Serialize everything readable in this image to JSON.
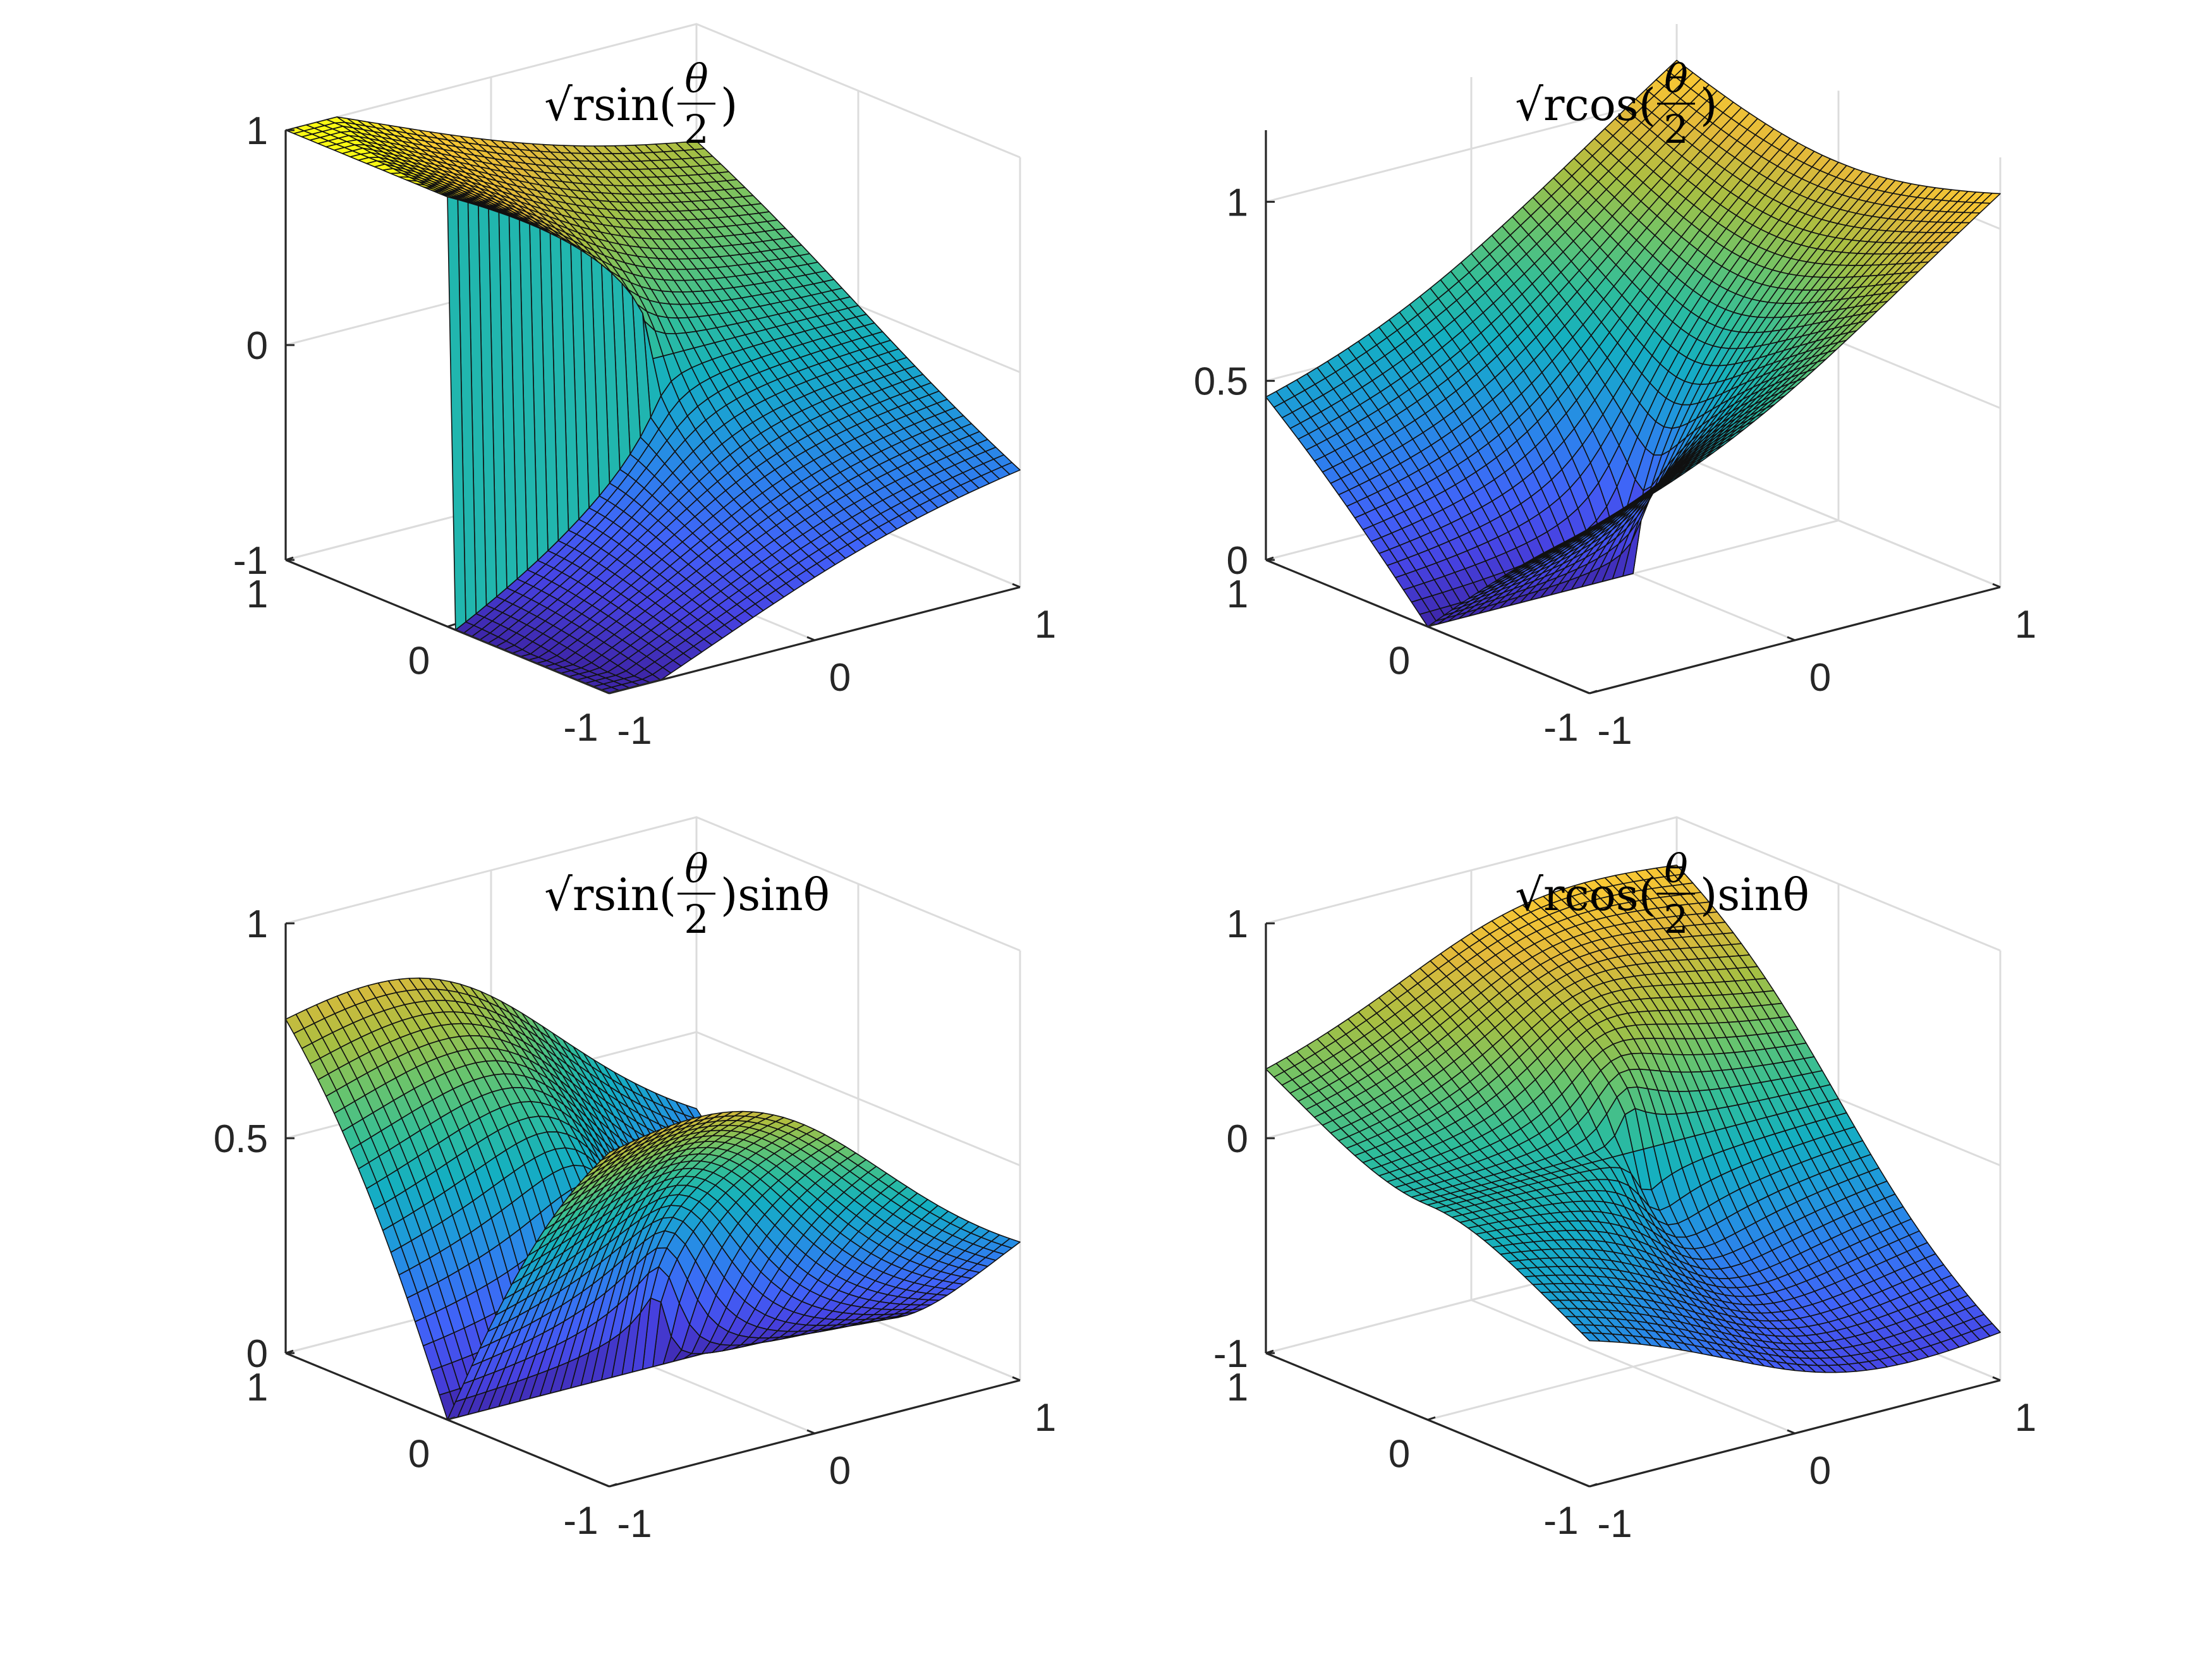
{
  "figure": {
    "background": "#ffffff"
  },
  "colormap": [
    "#3e26a8",
    "#4743e3",
    "#4162f8",
    "#2e7fee",
    "#1e9bd9",
    "#14afc1",
    "#2fbd9b",
    "#69c46d",
    "#a8bf42",
    "#e1b93b",
    "#fcca32",
    "#f9f914"
  ],
  "chart_data": [
    {
      "type": "surface",
      "title": "√r sin(θ/2)",
      "title_parts": {
        "root": "√",
        "var": "r",
        "fn": "sin(",
        "num": "θ",
        "den": "2",
        "close": ")",
        "suffix": ""
      },
      "function": "sqrt(r)*sin(theta/2)",
      "domain": {
        "x": [
          -1,
          1
        ],
        "y": [
          -1,
          1
        ]
      },
      "zlim": [
        -1,
        1
      ],
      "x_ticks": [
        "-1",
        "0",
        "1"
      ],
      "y_ticks": [
        "-1",
        "0",
        "1"
      ],
      "z_ticks": [
        {
          "v": -1,
          "label": "-1"
        },
        {
          "v": 0,
          "label": "0"
        },
        {
          "v": 1,
          "label": "1"
        }
      ],
      "grid": true,
      "mesh": 40
    },
    {
      "type": "surface",
      "title": "√r cos(θ/2)",
      "title_parts": {
        "root": "√",
        "var": "r",
        "fn": "cos(",
        "num": "θ",
        "den": "2",
        "close": ")",
        "suffix": ""
      },
      "function": "sqrt(r)*cos(theta/2)",
      "domain": {
        "x": [
          -1,
          1
        ],
        "y": [
          -1,
          1
        ]
      },
      "zlim": [
        0,
        1.2
      ],
      "x_ticks": [
        "-1",
        "0",
        "1"
      ],
      "y_ticks": [
        "-1",
        "0",
        "1"
      ],
      "z_ticks": [
        {
          "v": 0,
          "label": "0"
        },
        {
          "v": 0.5,
          "label": "0.5"
        },
        {
          "v": 1,
          "label": "1"
        }
      ],
      "grid": true,
      "mesh": 40
    },
    {
      "type": "surface",
      "title": "√r sin(θ/2) sinθ",
      "title_parts": {
        "root": "√",
        "var": "r",
        "fn": "sin(",
        "num": "θ",
        "den": "2",
        "close": ")",
        "suffix": "sinθ"
      },
      "function": "sqrt(r)*sin(theta/2)*sin(theta)",
      "domain": {
        "x": [
          -1,
          1
        ],
        "y": [
          -1,
          1
        ]
      },
      "zlim": [
        0,
        1
      ],
      "x_ticks": [
        "-1",
        "0",
        "1"
      ],
      "y_ticks": [
        "-1",
        "0",
        "1"
      ],
      "z_ticks": [
        {
          "v": 0,
          "label": "0"
        },
        {
          "v": 0.5,
          "label": "0.5"
        },
        {
          "v": 1,
          "label": "1"
        }
      ],
      "grid": true,
      "mesh": 40
    },
    {
      "type": "surface",
      "title": "√r cos(θ/2) sinθ",
      "title_parts": {
        "root": "√",
        "var": "r",
        "fn": "cos(",
        "num": "θ",
        "den": "2",
        "close": ")",
        "suffix": "sinθ"
      },
      "function": "sqrt(r)*cos(theta/2)*sin(theta)",
      "domain": {
        "x": [
          -1,
          1
        ],
        "y": [
          -1,
          1
        ]
      },
      "zlim": [
        -1,
        1
      ],
      "x_ticks": [
        "-1",
        "0",
        "1"
      ],
      "y_ticks": [
        "-1",
        "0",
        "1"
      ],
      "z_ticks": [
        {
          "v": -1,
          "label": "-1"
        },
        {
          "v": 0,
          "label": "0"
        },
        {
          "v": 1,
          "label": "1"
        }
      ],
      "grid": true,
      "mesh": 40
    }
  ]
}
